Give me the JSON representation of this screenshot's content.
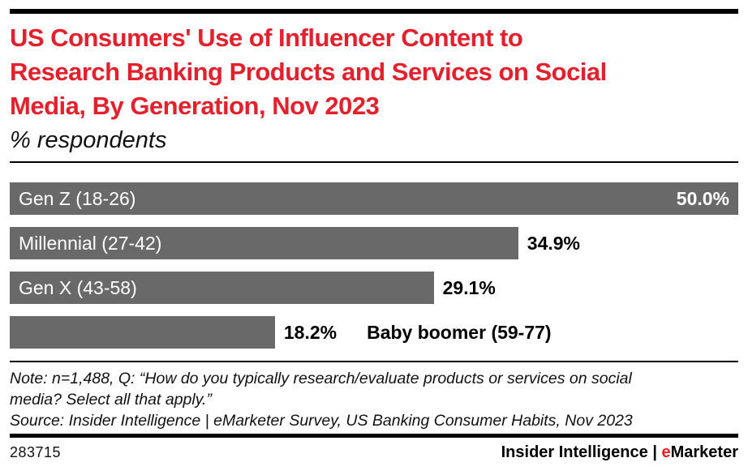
{
  "header": {
    "title_lines": [
      "US Consumers' Use of Influencer Content to",
      "Research Banking Products and Services on Social",
      "Media, By Generation, Nov 2023"
    ],
    "subtitle": "% respondents"
  },
  "chart_data": {
    "type": "bar",
    "orientation": "horizontal",
    "title": "US Consumers' Use of Influencer Content to Research Banking Products and Services on Social Media, By Generation, Nov 2023",
    "subtitle": "% respondents",
    "categories": [
      "Gen Z (18-26)",
      "Millennial (27-42)",
      "Gen X (43-58)",
      "Baby boomer (59-77)"
    ],
    "values": [
      50.0,
      34.9,
      29.1,
      18.2
    ],
    "value_labels": [
      "50.0%",
      "34.9%",
      "29.1%",
      "18.2%"
    ],
    "xlim": [
      0,
      50
    ],
    "grid": false,
    "legend": "none",
    "bar_color": "#696969",
    "label_inside": [
      true,
      true,
      true,
      false
    ],
    "value_inside": [
      true,
      false,
      false,
      false
    ]
  },
  "footnote": {
    "note_lines": [
      "Note: n=1,488, Q: “How do you typically research/evaluate products or services on social",
      "media? Select all that apply.”"
    ],
    "source": "Source: Insider Intelligence | eMarketer Survey, US Banking Consumer Habits, Nov 2023"
  },
  "footer": {
    "chart_id": "283715",
    "brand_prefix": "Insider Intelligence | ",
    "brand_e": "e",
    "brand_rest": "Marketer"
  },
  "colors": {
    "title_red": "#e3202c",
    "brand_red": "#ed1c24",
    "bar_gray": "#696969",
    "rule_black": "#000000"
  }
}
